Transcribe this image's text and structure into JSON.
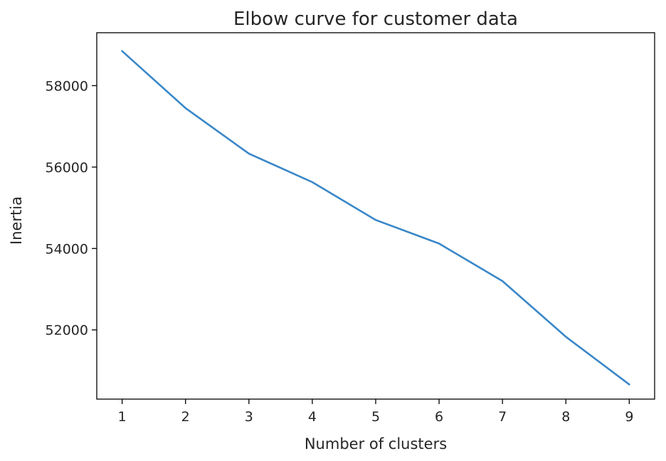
{
  "chart_data": {
    "type": "line",
    "title": "Elbow curve for customer data",
    "xlabel": "Number of clusters",
    "ylabel": "Inertia",
    "x": [
      1,
      2,
      3,
      4,
      5,
      6,
      7,
      8,
      9
    ],
    "series": [
      {
        "values": [
          58850,
          57450,
          56330,
          55630,
          54700,
          54120,
          53200,
          51830,
          50660
        ],
        "color": "#3a87c8"
      }
    ],
    "xlim": [
      0.6,
      9.4
    ],
    "ylim": [
      50300,
      59300
    ],
    "xticks": [
      1,
      2,
      3,
      4,
      5,
      6,
      7,
      8,
      9
    ],
    "yticks": [
      52000,
      54000,
      56000,
      58000
    ],
    "grid": false,
    "legend": "none"
  }
}
